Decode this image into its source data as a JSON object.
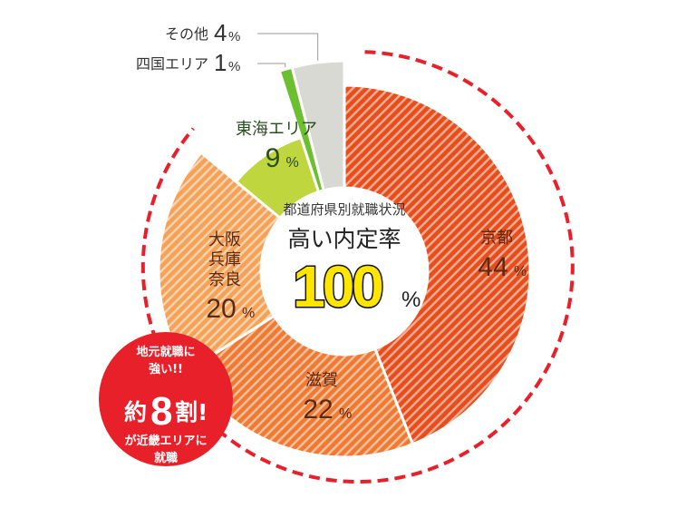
{
  "chart_data": {
    "type": "pie",
    "categories": [
      "京都",
      "滋賀",
      "大阪\n兵庫\n奈良",
      "東海エリア",
      "四国エリア",
      "その他"
    ],
    "values": [
      44,
      22,
      20,
      9,
      1,
      4
    ],
    "unit": "%",
    "colors": [
      "#e84e1b",
      "#f07a32",
      "#f5a257",
      "#bfd63e",
      "#6cbf2f",
      "#d9d9d4"
    ],
    "hatched": [
      true,
      true,
      true,
      false,
      false,
      false
    ],
    "label_style": [
      "inside",
      "inside",
      "inside",
      "inside",
      "callout",
      "callout"
    ]
  },
  "center": {
    "subtitle": "都道府県別就職状況",
    "title": "高い内定率",
    "rate_value": "100",
    "rate_unit": "%"
  },
  "badge": {
    "line1": "地元就職に",
    "line2": "強い!!",
    "prefix": "約",
    "number": "8",
    "suffix": "割!",
    "line4": "が近畿エリアに",
    "line5": "就職",
    "color": "#e8202a"
  }
}
